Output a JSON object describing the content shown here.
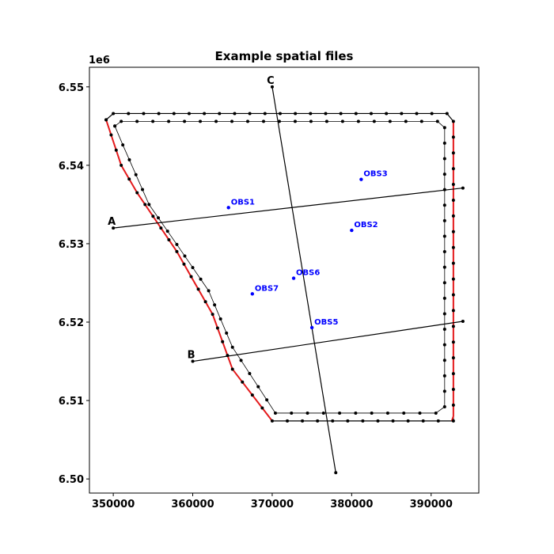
{
  "chart_data": {
    "type": "scatter",
    "title": "Example spatial files",
    "xlabel": "",
    "ylabel": "",
    "y_offset_label": "1e6",
    "xlim": [
      347000,
      396000
    ],
    "ylim": [
      6498200,
      6552500
    ],
    "grid": false,
    "x_ticks": [
      350000,
      360000,
      370000,
      380000,
      390000
    ],
    "x_tick_labels": [
      "350000",
      "360000",
      "370000",
      "380000",
      "390000"
    ],
    "y_ticks": [
      6500000,
      6510000,
      6520000,
      6530000,
      6540000,
      6550000
    ],
    "y_tick_labels": [
      "6.50",
      "6.51",
      "6.52",
      "6.53",
      "6.54",
      "6.55"
    ],
    "colors": {
      "boundary": "#000000",
      "red_boundary": "#e41a1c",
      "observation": "#0000ff",
      "section": "#000000"
    },
    "outer_boundary": [
      [
        349100,
        6545800
      ],
      [
        350000,
        6546600
      ],
      [
        392000,
        6546600
      ],
      [
        392800,
        6545600
      ],
      [
        392800,
        6507400
      ],
      [
        370000,
        6507400
      ],
      [
        365000,
        6514000
      ],
      [
        362500,
        6521000
      ],
      [
        358000,
        6529000
      ],
      [
        353000,
        6536500
      ],
      [
        351000,
        6540000
      ],
      [
        349100,
        6545800
      ]
    ],
    "inner_boundary": [
      [
        350200,
        6545000
      ],
      [
        351000,
        6545600
      ],
      [
        390800,
        6545600
      ],
      [
        391700,
        6544800
      ],
      [
        391700,
        6509200
      ],
      [
        390600,
        6508400
      ],
      [
        370400,
        6508400
      ],
      [
        365000,
        6516800
      ],
      [
        362000,
        6524000
      ],
      [
        358000,
        6529900
      ],
      [
        354500,
        6535000
      ],
      [
        351200,
        6542600
      ],
      [
        350200,
        6545000
      ]
    ],
    "red_boundaries": [
      [
        [
          349100,
          6545800
        ],
        [
          351000,
          6540000
        ],
        [
          353000,
          6536500
        ],
        [
          358000,
          6529000
        ],
        [
          362500,
          6521000
        ],
        [
          365000,
          6514000
        ],
        [
          370000,
          6507400
        ]
      ],
      [
        [
          392800,
          6545600
        ],
        [
          392800,
          6508000
        ],
        [
          392600,
          6507400
        ]
      ]
    ],
    "sections": [
      {
        "name": "A",
        "points": [
          [
            350000,
            6532000
          ],
          [
            394000,
            6537100
          ]
        ]
      },
      {
        "name": "B",
        "points": [
          [
            360000,
            6515000
          ],
          [
            394000,
            6520100
          ]
        ]
      },
      {
        "name": "C",
        "points": [
          [
            370000,
            6550000
          ],
          [
            378000,
            6500800
          ]
        ]
      }
    ],
    "observations": [
      {
        "name": "OBS1",
        "x": 364500,
        "y": 6534600
      },
      {
        "name": "OBS2",
        "x": 380000,
        "y": 6531700
      },
      {
        "name": "OBS3",
        "x": 381200,
        "y": 6538200
      },
      {
        "name": "OBS5",
        "x": 375000,
        "y": 6519300
      },
      {
        "name": "OBS6",
        "x": 372700,
        "y": 6525600
      },
      {
        "name": "OBS7",
        "x": 367500,
        "y": 6523600
      }
    ]
  }
}
